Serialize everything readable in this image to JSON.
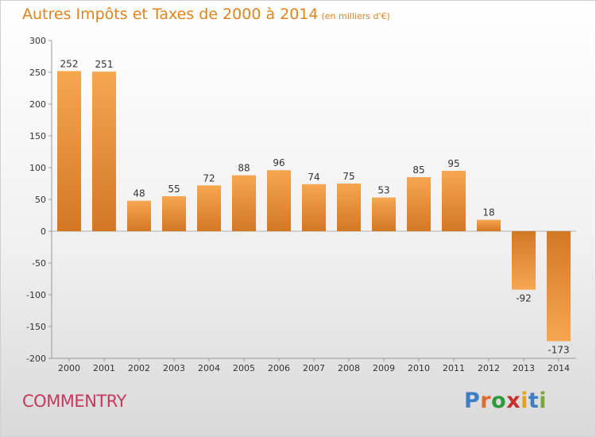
{
  "header": {
    "title": "Autres Impôts et Taxes de 2000 à 2014",
    "unit": "(en milliers d'€)"
  },
  "footer": {
    "commune": "COMMENTRY",
    "brand": "Proxiti"
  },
  "colors": {
    "title": "#e0821e",
    "commune": "#c23a5e",
    "bar_light": "#f6a651",
    "bar_dark": "#d27824"
  },
  "chart_data": {
    "type": "bar",
    "title": "Autres Impôts et Taxes de 2000 à 2014",
    "subtitle": "(en milliers d'€)",
    "categories": [
      "2000",
      "2001",
      "2002",
      "2003",
      "2004",
      "2005",
      "2006",
      "2007",
      "2008",
      "2009",
      "2010",
      "2011",
      "2012",
      "2013",
      "2014"
    ],
    "values": [
      252,
      251,
      48,
      55,
      72,
      88,
      96,
      74,
      75,
      53,
      85,
      95,
      18,
      -92,
      -173
    ],
    "value_labels": [
      "252",
      "251",
      "48",
      "55",
      "72",
      "88",
      "96",
      "74",
      "75",
      "53",
      "85",
      "95",
      "18",
      "-92",
      "-173"
    ],
    "ylim": [
      -200,
      300
    ],
    "yticks": [
      300,
      250,
      200,
      150,
      100,
      50,
      0,
      -50,
      -100,
      -150,
      -200
    ],
    "grid": false,
    "legend": "none"
  }
}
